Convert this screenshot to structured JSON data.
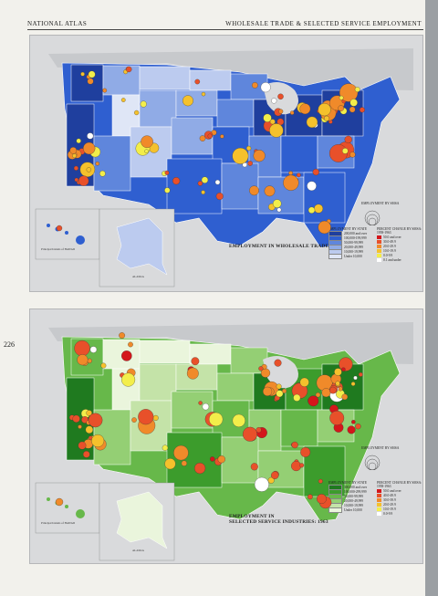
{
  "header": {
    "left": "NATIONAL ATLAS",
    "right": "WHOLESALE TRADE & SELECTED SERVICE EMPLOYMENT"
  },
  "page_number": "226",
  "map1": {
    "title_line1": "EMPLOYMENT IN WHOLESALE TRADE: 1963",
    "hawaii_label": "Principal Islands of HAWAII",
    "alaska_label": "ALASKA",
    "legend_circles_title": "EMPLOYMENT BY SMSA",
    "legend_state_title": "EMPLOYMENT BY STATE",
    "legend_change_title": "PERCENT CHANGE BY SMSA: 1958-1963",
    "state_classes": [
      "200,000 and over",
      "100,000-199,999",
      "50,000-99,999",
      "20,000-49,999",
      "10,000-19,999",
      "Under 10,000"
    ],
    "change_classes": [
      "50.0 and over",
      "30.0-49.9",
      "20.0-29.9",
      "10.0-19.9",
      "0.0-9.9",
      "0.1 and under"
    ],
    "state_colors": [
      "#1f3f9e",
      "#2f5fd0",
      "#5f86dc",
      "#90abe6",
      "#bccbef",
      "#dfe6f6"
    ]
  },
  "map2": {
    "title_line1": "EMPLOYMENT IN",
    "title_line2": "SELECTED SERVICE INDUSTRIES: 1963",
    "hawaii_label": "Principal Islands of HAWAII",
    "alaska_label": "ALASKA",
    "legend_circles_title": "EMPLOYMENT BY SMSA",
    "legend_state_title": "EMPLOYMENT BY STATE",
    "legend_change_title": "PERCENT CHANGE BY SMSA: 1958-1963",
    "state_classes": [
      "300,000 and over",
      "100,000-299,999",
      "50,000-99,999",
      "20,000-49,999",
      "10,000-19,999",
      "Under 10,000"
    ],
    "change_classes": [
      "50.0 and over",
      "40.0-49.9",
      "30.0-39.9",
      "20.0-29.9",
      "10.0-19.9",
      "0.0-9.9"
    ],
    "state_colors": [
      "#1f7a1f",
      "#3c9c2c",
      "#67b84a",
      "#94cf74",
      "#c4e3a8",
      "#eaf5dc"
    ]
  },
  "change_colors": [
    "#d4161b",
    "#e8502a",
    "#f08a2a",
    "#f5c12c",
    "#f3ee4a",
    "#ffffff"
  ]
}
